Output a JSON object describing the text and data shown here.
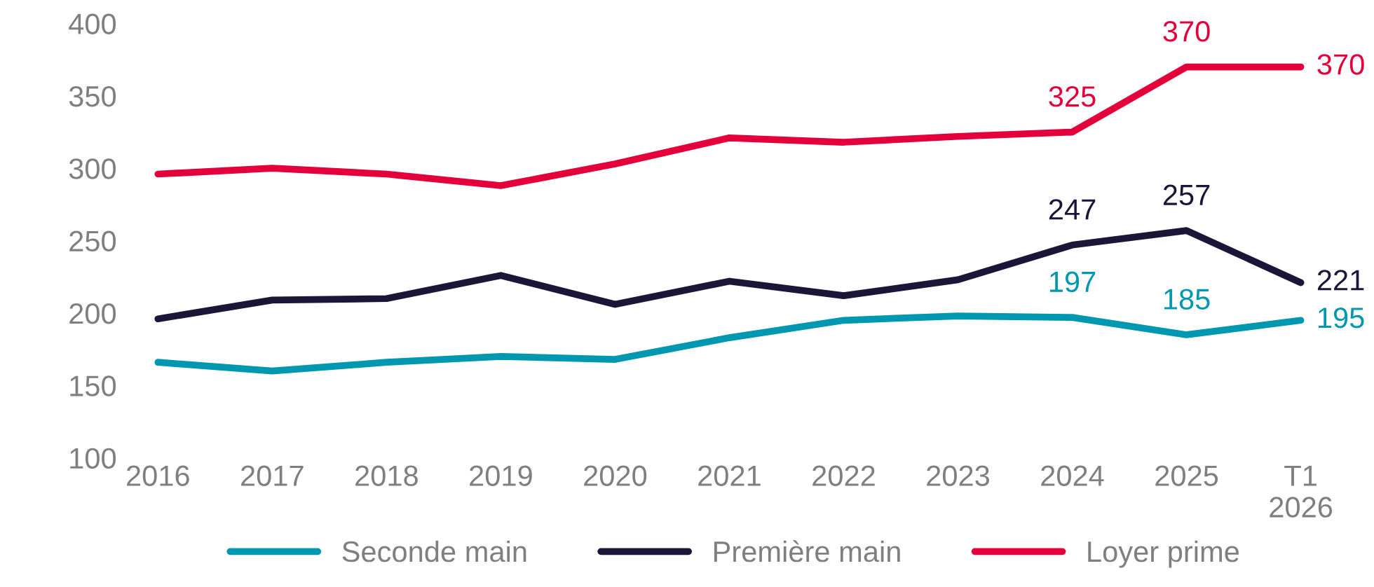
{
  "chart_data": {
    "type": "line",
    "categories": [
      "2016",
      "2017",
      "2018",
      "2019",
      "2020",
      "2021",
      "2022",
      "2023",
      "2024",
      "2025",
      "T1\n2026"
    ],
    "series": [
      {
        "name": "Seconde main",
        "color": "#0098b0",
        "values": [
          166,
          160,
          166,
          170,
          168,
          183,
          195,
          198,
          197,
          185,
          195
        ],
        "value_labels": [
          null,
          null,
          null,
          null,
          null,
          null,
          null,
          null,
          "197",
          "185",
          "195"
        ]
      },
      {
        "name": "Première main",
        "color": "#1b1537",
        "values": [
          196,
          209,
          210,
          226,
          206,
          222,
          212,
          223,
          247,
          257,
          221
        ],
        "value_labels": [
          null,
          null,
          null,
          null,
          null,
          null,
          null,
          null,
          "247",
          "257",
          "221"
        ]
      },
      {
        "name": "Loyer prime",
        "color": "#e4003a",
        "values": [
          296,
          300,
          296,
          288,
          303,
          321,
          318,
          322,
          325,
          370,
          370
        ],
        "value_labels": [
          null,
          null,
          null,
          null,
          null,
          null,
          null,
          null,
          "325",
          "370",
          "370"
        ]
      }
    ],
    "ylim": [
      100,
      400
    ],
    "yticks": [
      100,
      150,
      200,
      250,
      300,
      350,
      400
    ],
    "grid": false,
    "legend": "bottom",
    "marker": "none",
    "line_style": "solid"
  }
}
